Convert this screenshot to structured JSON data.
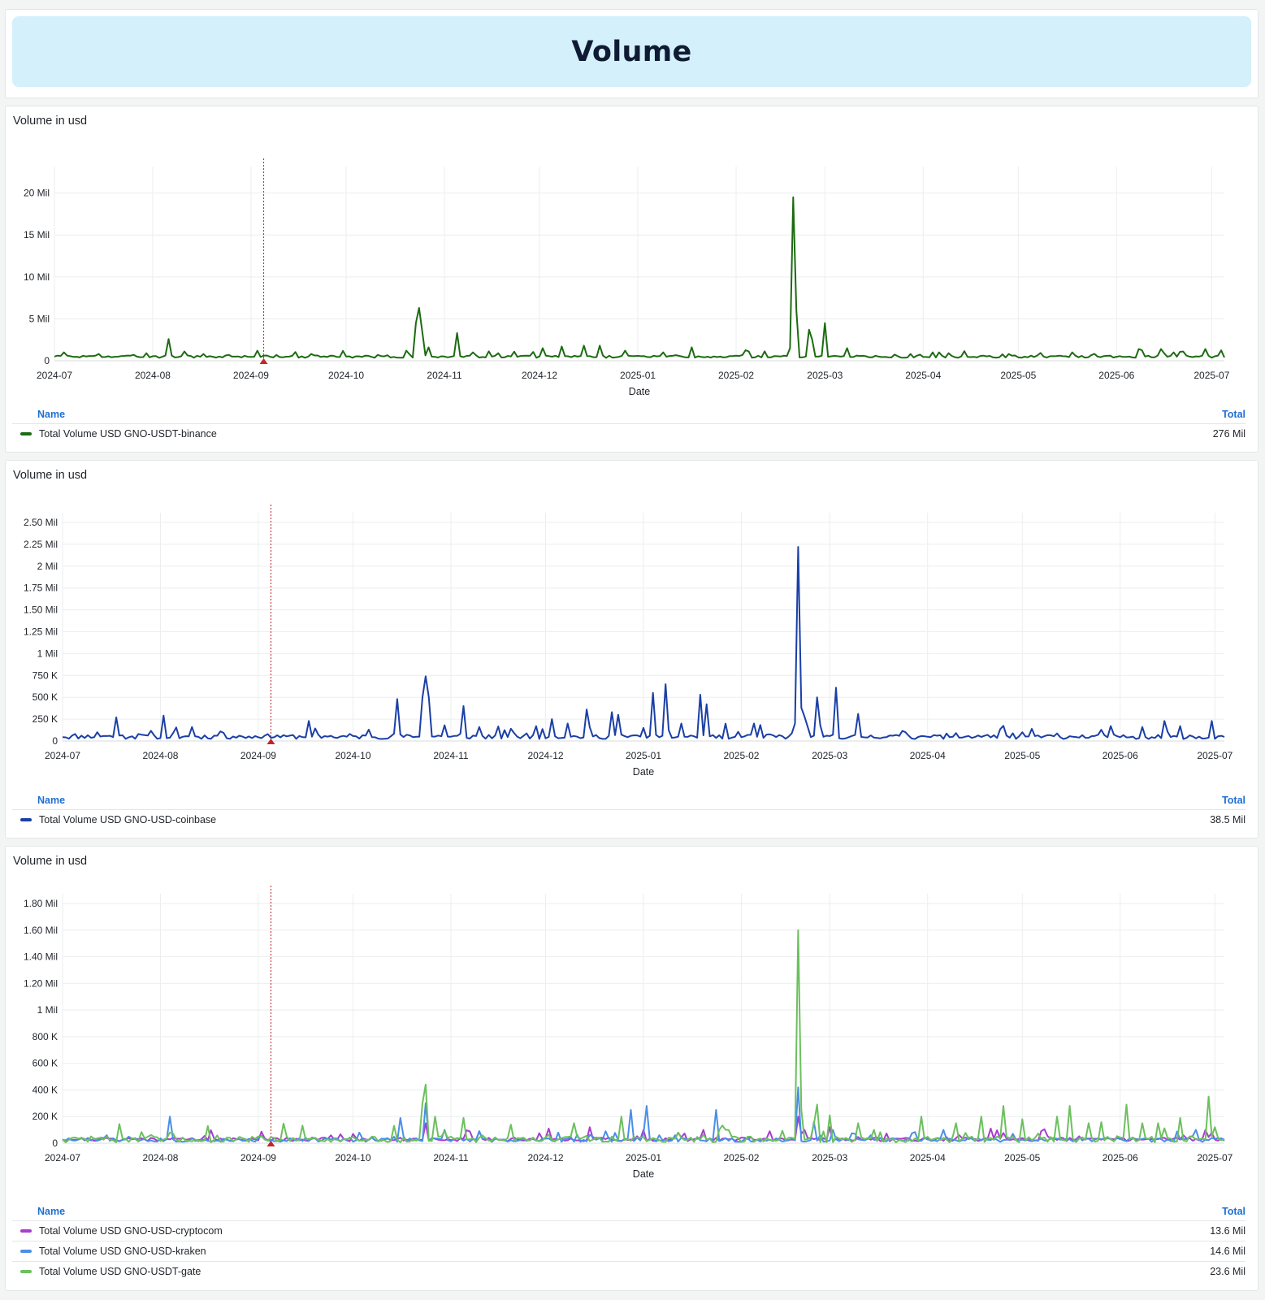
{
  "header": {
    "title": "Volume"
  },
  "colors": {
    "binance": "#1c6b11",
    "coinbase": "#1a3fa6",
    "cryptocom": "#a83ccf",
    "kraken": "#4a8ee8",
    "gate": "#6cc05e",
    "annotation": "#c0262a",
    "legend_head": "#1f6fd1"
  },
  "legend_labels": {
    "name": "Name",
    "total": "Total"
  },
  "panels": [
    {
      "title": "Volume in usd",
      "legend": [
        {
          "name": "Total Volume USD GNO-USDT-binance",
          "total": "276 Mil",
          "color": "#1c6b11"
        }
      ]
    },
    {
      "title": "Volume in usd",
      "legend": [
        {
          "name": "Total Volume USD GNO-USD-coinbase",
          "total": "38.5 Mil",
          "color": "#1a3fa6"
        }
      ]
    },
    {
      "title": "Volume in usd",
      "legend": [
        {
          "name": "Total Volume USD GNO-USD-cryptocom",
          "total": "13.6 Mil",
          "color": "#a83ccf"
        },
        {
          "name": "Total Volume USD GNO-USD-kraken",
          "total": "14.6 Mil",
          "color": "#4a8ee8"
        },
        {
          "name": "Total Volume USD GNO-USDT-gate",
          "total": "23.6 Mil",
          "color": "#6cc05e"
        }
      ]
    }
  ],
  "chart_data": [
    {
      "type": "line",
      "title": "Volume in usd",
      "xlabel": "Date",
      "x_ticks": [
        "2024-07",
        "2024-08",
        "2024-09",
        "2024-10",
        "2024-11",
        "2024-12",
        "2025-01",
        "2025-02",
        "2025-03",
        "2025-04",
        "2025-05",
        "2025-06",
        "2025-07"
      ],
      "y_ticks": [
        "0",
        "5 Mil",
        "10 Mil",
        "15 Mil",
        "20 Mil"
      ],
      "ylim": [
        0,
        22000000
      ],
      "x_range": [
        "2024-07-01",
        "2025-07-05"
      ],
      "annotation_date": "2024-09-05",
      "grid": true,
      "series": [
        {
          "name": "Total Volume USD GNO-USDT-binance",
          "color": "#1c6b11",
          "baseline": 500000,
          "noise": 250000,
          "period": 7,
          "seed": 3,
          "peaks": [
            [
              "2024-07-04",
              1000000
            ],
            [
              "2024-07-15",
              800000
            ],
            [
              "2024-07-30",
              900000
            ],
            [
              "2024-08-06",
              2600000
            ],
            [
              "2024-08-11",
              1100000
            ],
            [
              "2024-08-17",
              800000
            ],
            [
              "2024-08-25",
              700000
            ],
            [
              "2024-09-03",
              1200000
            ],
            [
              "2024-09-20",
              800000
            ],
            [
              "2024-10-11",
              700000
            ],
            [
              "2024-10-20",
              1200000
            ],
            [
              "2024-10-23",
              4500000
            ],
            [
              "2024-10-24",
              6300000
            ],
            [
              "2024-10-25",
              3500000
            ],
            [
              "2024-10-27",
              1600000
            ],
            [
              "2024-11-05",
              3300000
            ],
            [
              "2024-11-10",
              1000000
            ],
            [
              "2024-11-18",
              900000
            ],
            [
              "2024-12-02",
              1500000
            ],
            [
              "2024-12-08",
              1700000
            ],
            [
              "2024-12-15",
              1800000
            ],
            [
              "2024-12-20",
              1800000
            ],
            [
              "2024-12-28",
              1200000
            ],
            [
              "2025-01-09",
              1000000
            ],
            [
              "2025-01-18",
              1600000
            ],
            [
              "2025-02-05",
              1100000
            ],
            [
              "2025-02-18",
              1500000
            ],
            [
              "2025-02-19",
              19500000
            ],
            [
              "2025-02-20",
              6000000
            ],
            [
              "2025-02-24",
              3700000
            ],
            [
              "2025-02-25",
              2500000
            ],
            [
              "2025-03-01",
              4500000
            ],
            [
              "2025-03-08",
              1500000
            ],
            [
              "2025-03-28",
              800000
            ],
            [
              "2025-04-06",
              1000000
            ],
            [
              "2025-04-28",
              800000
            ],
            [
              "2025-05-08",
              700000
            ],
            [
              "2025-05-18",
              1000000
            ],
            [
              "2025-06-08",
              1400000
            ],
            [
              "2025-06-15",
              1400000
            ],
            [
              "2025-06-19",
              1000000
            ],
            [
              "2025-06-22",
              1100000
            ],
            [
              "2025-06-29",
              1400000
            ]
          ]
        }
      ]
    },
    {
      "type": "line",
      "title": "Volume in usd",
      "xlabel": "Date",
      "x_ticks": [
        "2024-07",
        "2024-08",
        "2024-09",
        "2024-10",
        "2024-11",
        "2024-12",
        "2025-01",
        "2025-02",
        "2025-03",
        "2025-04",
        "2025-05",
        "2025-06",
        "2025-07"
      ],
      "y_ticks": [
        "0",
        "250 K",
        "500 K",
        "750 K",
        "1 Mil",
        "1.25 Mil",
        "1.50 Mil",
        "1.75 Mil",
        "2 Mil",
        "2.25 Mil",
        "2.50 Mil"
      ],
      "ylim": [
        0,
        2500000
      ],
      "x_range": [
        "2024-07-01",
        "2025-07-04"
      ],
      "annotation_date": "2024-09-05",
      "grid": true,
      "series": [
        {
          "name": "Total Volume USD GNO-USD-coinbase",
          "color": "#1a3fa6",
          "baseline": 50000,
          "noise": 45000,
          "period": 7,
          "seed": 11,
          "peaks": [
            [
              "2024-07-05",
              80000
            ],
            [
              "2024-07-12",
              100000
            ],
            [
              "2024-07-18",
              270000
            ],
            [
              "2024-07-25",
              80000
            ],
            [
              "2024-08-02",
              290000
            ],
            [
              "2024-08-11",
              160000
            ],
            [
              "2024-08-20",
              110000
            ],
            [
              "2024-09-03",
              60000
            ],
            [
              "2024-09-17",
              230000
            ],
            [
              "2024-10-06",
              130000
            ],
            [
              "2024-10-15",
              480000
            ],
            [
              "2024-10-23",
              500000
            ],
            [
              "2024-10-24",
              740000
            ],
            [
              "2024-10-25",
              500000
            ],
            [
              "2024-10-30",
              180000
            ],
            [
              "2024-11-05",
              400000
            ],
            [
              "2024-11-10",
              160000
            ],
            [
              "2024-11-20",
              140000
            ],
            [
              "2024-11-28",
              170000
            ],
            [
              "2024-12-03",
              250000
            ],
            [
              "2024-12-08",
              200000
            ],
            [
              "2024-12-14",
              360000
            ],
            [
              "2024-12-22",
              330000
            ],
            [
              "2024-12-24",
              300000
            ],
            [
              "2025-01-01",
              150000
            ],
            [
              "2025-01-04",
              550000
            ],
            [
              "2025-01-08",
              650000
            ],
            [
              "2025-01-13",
              200000
            ],
            [
              "2025-01-19",
              530000
            ],
            [
              "2025-01-21",
              420000
            ],
            [
              "2025-02-05",
              200000
            ],
            [
              "2025-02-18",
              200000
            ],
            [
              "2025-02-19",
              2220000
            ],
            [
              "2025-02-20",
              380000
            ],
            [
              "2025-02-21",
              280000
            ],
            [
              "2025-02-25",
              500000
            ],
            [
              "2025-03-03",
              610000
            ],
            [
              "2025-03-10",
              310000
            ],
            [
              "2025-03-25",
              100000
            ],
            [
              "2025-04-10",
              90000
            ],
            [
              "2025-05-01",
              100000
            ],
            [
              "2025-06-08",
              160000
            ],
            [
              "2025-06-15",
              230000
            ],
            [
              "2025-06-20",
              170000
            ],
            [
              "2025-06-30",
              230000
            ]
          ]
        }
      ]
    },
    {
      "type": "line",
      "title": "Volume in usd",
      "xlabel": "Date",
      "x_ticks": [
        "2024-07",
        "2024-08",
        "2024-09",
        "2024-10",
        "2024-11",
        "2024-12",
        "2025-01",
        "2025-02",
        "2025-03",
        "2025-04",
        "2025-05",
        "2025-06",
        "2025-07"
      ],
      "y_ticks": [
        "0",
        "200 K",
        "400 K",
        "600 K",
        "800 K",
        "1 Mil",
        "1.20 Mil",
        "1.40 Mil",
        "1.60 Mil",
        "1.80 Mil"
      ],
      "ylim": [
        0,
        1800000
      ],
      "x_range": [
        "2024-07-01",
        "2025-07-04"
      ],
      "annotation_date": "2024-09-05",
      "grid": true,
      "series": [
        {
          "name": "Total Volume USD GNO-USD-cryptocom",
          "color": "#a83ccf",
          "baseline": 30000,
          "noise": 25000,
          "period": 14,
          "seed": 21,
          "peaks": [
            [
              "2024-10-24",
              150000
            ],
            [
              "2024-11-10",
              90000
            ],
            [
              "2024-12-02",
              110000
            ],
            [
              "2024-12-15",
              120000
            ],
            [
              "2025-01-01",
              100000
            ],
            [
              "2025-01-20",
              100000
            ],
            [
              "2025-02-10",
              90000
            ],
            [
              "2025-02-19",
              200000
            ],
            [
              "2025-03-01",
              120000
            ],
            [
              "2025-06-28",
              100000
            ]
          ]
        },
        {
          "name": "Total Volume USD GNO-USD-kraken",
          "color": "#4a8ee8",
          "baseline": 25000,
          "noise": 25000,
          "period": 7,
          "seed": 33,
          "peaks": [
            [
              "2024-07-15",
              60000
            ],
            [
              "2024-08-04",
              200000
            ],
            [
              "2024-10-03",
              80000
            ],
            [
              "2024-10-16",
              190000
            ],
            [
              "2024-10-24",
              300000
            ],
            [
              "2024-10-30",
              100000
            ],
            [
              "2024-11-10",
              90000
            ],
            [
              "2024-12-05",
              80000
            ],
            [
              "2024-12-20",
              90000
            ],
            [
              "2024-12-28",
              250000
            ],
            [
              "2025-01-02",
              280000
            ],
            [
              "2025-01-24",
              250000
            ],
            [
              "2025-02-19",
              420000
            ],
            [
              "2025-02-24",
              160000
            ],
            [
              "2025-03-02",
              100000
            ],
            [
              "2025-04-06",
              100000
            ],
            [
              "2025-06-25",
              100000
            ]
          ]
        },
        {
          "name": "Total Volume USD GNO-USDT-gate",
          "color": "#6cc05e",
          "baseline": 30000,
          "noise": 40000,
          "period": 7,
          "seed": 47,
          "peaks": [
            [
              "2024-08-04",
              80000
            ],
            [
              "2024-10-23",
              300000
            ],
            [
              "2024-10-24",
              440000
            ],
            [
              "2024-10-27",
              200000
            ],
            [
              "2024-11-05",
              190000
            ],
            [
              "2024-11-20",
              140000
            ],
            [
              "2024-12-10",
              150000
            ],
            [
              "2024-12-25",
              200000
            ],
            [
              "2025-01-25",
              100000
            ],
            [
              "2025-02-19",
              1600000
            ],
            [
              "2025-02-20",
              250000
            ],
            [
              "2025-02-25",
              290000
            ],
            [
              "2025-03-01",
              210000
            ],
            [
              "2025-03-10",
              150000
            ],
            [
              "2025-03-15",
              100000
            ],
            [
              "2025-03-30",
              200000
            ],
            [
              "2025-04-10",
              150000
            ],
            [
              "2025-04-18",
              200000
            ],
            [
              "2025-04-25",
              280000
            ],
            [
              "2025-05-01",
              180000
            ],
            [
              "2025-05-12",
              200000
            ],
            [
              "2025-05-16",
              280000
            ],
            [
              "2025-05-22",
              150000
            ],
            [
              "2025-06-03",
              290000
            ],
            [
              "2025-06-08",
              150000
            ],
            [
              "2025-06-13",
              150000
            ],
            [
              "2025-06-20",
              190000
            ],
            [
              "2025-06-29",
              350000
            ],
            [
              "2025-07-01",
              120000
            ]
          ]
        }
      ]
    }
  ]
}
